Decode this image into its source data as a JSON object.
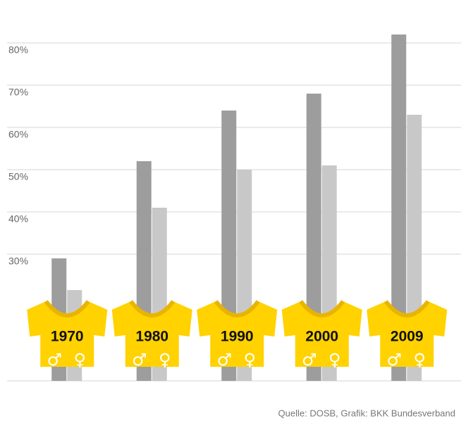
{
  "chart_data": {
    "type": "bar",
    "categories": [
      "1970",
      "1980",
      "1990",
      "2000",
      "2009"
    ],
    "series": [
      {
        "name": "♂",
        "color": "#9d9d9d",
        "values": [
          29,
          52,
          64,
          68,
          82
        ]
      },
      {
        "name": "♀",
        "color": "#c8c8c9",
        "values": [
          21.5,
          41,
          50,
          51,
          63
        ]
      }
    ],
    "ylim": [
      0,
      85
    ],
    "yticks": [
      {
        "value": 30,
        "label": "30%"
      },
      {
        "value": 40,
        "label": "40%"
      },
      {
        "value": 50,
        "label": "50%"
      },
      {
        "value": 60,
        "label": "60%"
      },
      {
        "value": 70,
        "label": "70%"
      },
      {
        "value": 80,
        "label": "80%"
      }
    ],
    "grid": true,
    "source": "Quelle: DOSB, Grafik: BKK Bundesverband"
  }
}
